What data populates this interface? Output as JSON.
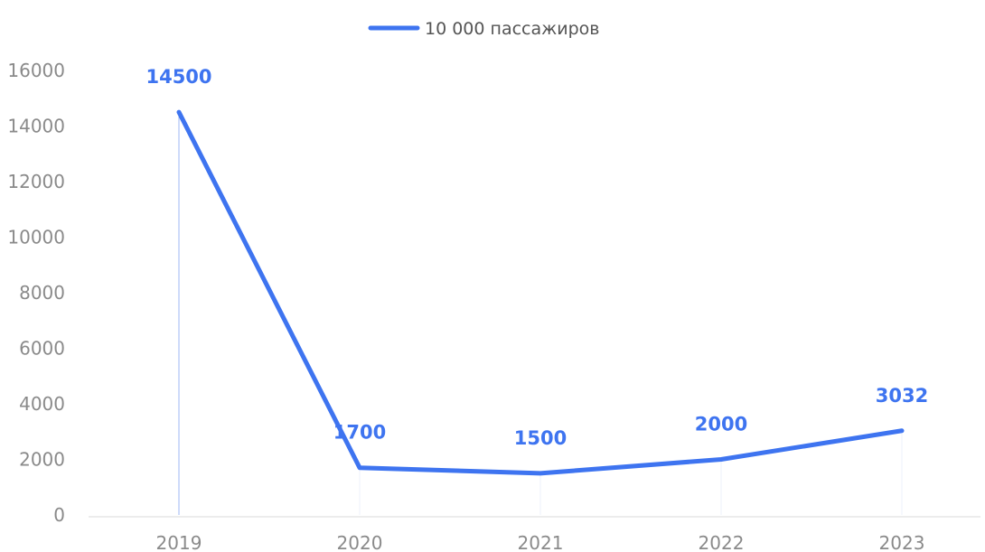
{
  "chart_data": {
    "type": "line",
    "categories": [
      "2019",
      "2020",
      "2021",
      "2022",
      "2023"
    ],
    "series": [
      {
        "name": "10 000 пассажиров",
        "values": [
          14500,
          1700,
          1500,
          2000,
          3032
        ]
      }
    ],
    "data_labels": [
      "14500",
      "1700",
      "1500",
      "2000",
      "3032"
    ],
    "y_ticks": [
      "0",
      "2000",
      "4000",
      "6000",
      "8000",
      "10000",
      "12000",
      "14000",
      "16000"
    ],
    "ylim": [
      0,
      16000
    ],
    "legend_position": "top-center",
    "grid": false,
    "colors": {
      "series": "#3e74f0",
      "axis": "#d9d9d9",
      "ticks": "#8a8a8a"
    }
  }
}
